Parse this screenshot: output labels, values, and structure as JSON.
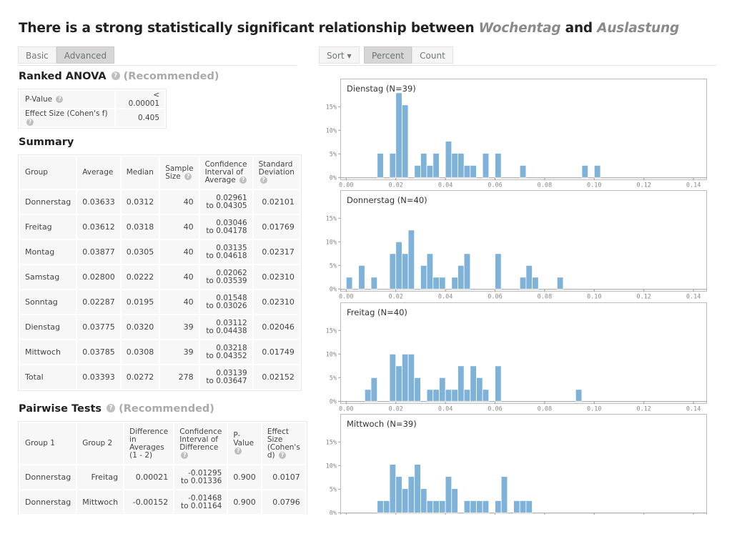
{
  "header": {
    "title_prefix": "There is a strong statistically significant relationship between",
    "var1": "Wochentag",
    "conj": "and",
    "var2": "Auslastung"
  },
  "left_tabs": [
    {
      "label": "Basic",
      "active": false
    },
    {
      "label": "Advanced",
      "active": true
    }
  ],
  "right_controls": {
    "sort_label": "Sort",
    "mode_tabs": [
      {
        "label": "Percent",
        "active": true
      },
      {
        "label": "Count",
        "active": false
      }
    ]
  },
  "anova": {
    "title": "Ranked ANOVA",
    "recommended": "(Recommended)",
    "rows": [
      {
        "label": "P-Value",
        "value": "< 0.00001"
      },
      {
        "label": "Effect Size (Cohen's f)",
        "value": "0.405"
      }
    ]
  },
  "summary": {
    "title": "Summary",
    "headers": [
      "Group",
      "Average",
      "Median",
      "Sample Size",
      "Confidence Interval of Average",
      "Standard Deviation"
    ],
    "rows": [
      {
        "group": "Donnerstag",
        "average": "0.03633",
        "median": "0.0312",
        "n": "40",
        "ci_low": "0.02961",
        "ci_high": "to 0.04305",
        "sd": "0.02101"
      },
      {
        "group": "Freitag",
        "average": "0.03612",
        "median": "0.0318",
        "n": "40",
        "ci_low": "0.03046",
        "ci_high": "to 0.04178",
        "sd": "0.01769"
      },
      {
        "group": "Montag",
        "average": "0.03877",
        "median": "0.0305",
        "n": "40",
        "ci_low": "0.03135",
        "ci_high": "to 0.04618",
        "sd": "0.02317"
      },
      {
        "group": "Samstag",
        "average": "0.02800",
        "median": "0.0222",
        "n": "40",
        "ci_low": "0.02062",
        "ci_high": "to 0.03539",
        "sd": "0.02310"
      },
      {
        "group": "Sonntag",
        "average": "0.02287",
        "median": "0.0195",
        "n": "40",
        "ci_low": "0.01548",
        "ci_high": "to 0.03026",
        "sd": "0.02310"
      },
      {
        "group": "Dienstag",
        "average": "0.03775",
        "median": "0.0320",
        "n": "39",
        "ci_low": "0.03112",
        "ci_high": "to 0.04438",
        "sd": "0.02046"
      },
      {
        "group": "Mittwoch",
        "average": "0.03785",
        "median": "0.0308",
        "n": "39",
        "ci_low": "0.03218",
        "ci_high": "to 0.04352",
        "sd": "0.01749"
      },
      {
        "group": "Total",
        "average": "0.03393",
        "median": "0.0272",
        "n": "278",
        "ci_low": "0.03139",
        "ci_high": "to 0.03647",
        "sd": "0.02152"
      }
    ]
  },
  "pairwise": {
    "title": "Pairwise Tests",
    "recommended": "(Recommended)",
    "headers": [
      "Group 1",
      "Group 2",
      "Difference in Averages (1 - 2)",
      "Confidence Interval of Difference",
      "P-Value",
      "Effect Size (Cohen's d)"
    ],
    "rows": [
      {
        "g1": "Donnerstag",
        "g2": "Freitag",
        "diff": "0.00021",
        "ci_low": "-0.01295",
        "ci_high": "to 0.01336",
        "p": "0.900",
        "d": "0.0107"
      },
      {
        "g1": "Donnerstag",
        "g2": "Mittwoch",
        "diff": "-0.00152",
        "ci_low": "-0.01468",
        "ci_high": "to 0.01164",
        "p": "0.900",
        "d": "0.0796"
      }
    ]
  },
  "chart_data": {
    "type": "bar",
    "subtype": "histogram-small-multiples",
    "bin_width": 0.0025,
    "xlim": [
      0.0,
      0.14
    ],
    "ylim_percent": [
      0,
      18
    ],
    "x_ticks": [
      "0.00",
      "0.02",
      "0.04",
      "0.06",
      "0.08",
      "0.10",
      "0.12",
      "0.14"
    ],
    "y_ticks": [
      "0%",
      "5%",
      "10%",
      "15%"
    ],
    "bar_color": "#7fb2d9",
    "panels": [
      {
        "title": "Dienstag (N=39)",
        "n": 39,
        "bins": [
          {
            "start": 0.0125,
            "count": 2
          },
          {
            "start": 0.0175,
            "count": 2
          },
          {
            "start": 0.02,
            "count": 7
          },
          {
            "start": 0.0225,
            "count": 6
          },
          {
            "start": 0.0275,
            "count": 1
          },
          {
            "start": 0.03,
            "count": 2
          },
          {
            "start": 0.0325,
            "count": 1
          },
          {
            "start": 0.035,
            "count": 2
          },
          {
            "start": 0.04,
            "count": 3
          },
          {
            "start": 0.0425,
            "count": 2
          },
          {
            "start": 0.045,
            "count": 2
          },
          {
            "start": 0.0475,
            "count": 1
          },
          {
            "start": 0.05,
            "count": 1
          },
          {
            "start": 0.055,
            "count": 2
          },
          {
            "start": 0.06,
            "count": 2
          },
          {
            "start": 0.07,
            "count": 1
          },
          {
            "start": 0.095,
            "count": 1
          },
          {
            "start": 0.1,
            "count": 1
          }
        ]
      },
      {
        "title": "Donnerstag (N=40)",
        "n": 40,
        "bins": [
          {
            "start": 0.0,
            "count": 1
          },
          {
            "start": 0.005,
            "count": 2
          },
          {
            "start": 0.01,
            "count": 1
          },
          {
            "start": 0.0175,
            "count": 3
          },
          {
            "start": 0.02,
            "count": 4
          },
          {
            "start": 0.0225,
            "count": 3
          },
          {
            "start": 0.025,
            "count": 5
          },
          {
            "start": 0.03,
            "count": 2
          },
          {
            "start": 0.0325,
            "count": 3
          },
          {
            "start": 0.035,
            "count": 1
          },
          {
            "start": 0.0375,
            "count": 1
          },
          {
            "start": 0.0425,
            "count": 1
          },
          {
            "start": 0.045,
            "count": 2
          },
          {
            "start": 0.0475,
            "count": 3
          },
          {
            "start": 0.06,
            "count": 3
          },
          {
            "start": 0.07,
            "count": 1
          },
          {
            "start": 0.0725,
            "count": 2
          },
          {
            "start": 0.075,
            "count": 1
          },
          {
            "start": 0.085,
            "count": 1
          }
        ]
      },
      {
        "title": "Freitag (N=40)",
        "n": 40,
        "bins": [
          {
            "start": 0.0075,
            "count": 1
          },
          {
            "start": 0.01,
            "count": 2
          },
          {
            "start": 0.0175,
            "count": 4
          },
          {
            "start": 0.02,
            "count": 3
          },
          {
            "start": 0.0225,
            "count": 4
          },
          {
            "start": 0.025,
            "count": 4
          },
          {
            "start": 0.0275,
            "count": 2
          },
          {
            "start": 0.0325,
            "count": 1
          },
          {
            "start": 0.035,
            "count": 1
          },
          {
            "start": 0.0375,
            "count": 2
          },
          {
            "start": 0.04,
            "count": 1
          },
          {
            "start": 0.0425,
            "count": 1
          },
          {
            "start": 0.045,
            "count": 3
          },
          {
            "start": 0.0475,
            "count": 1
          },
          {
            "start": 0.05,
            "count": 3
          },
          {
            "start": 0.0525,
            "count": 2
          },
          {
            "start": 0.055,
            "count": 1
          },
          {
            "start": 0.06,
            "count": 3
          },
          {
            "start": 0.0925,
            "count": 1
          }
        ]
      },
      {
        "title": "Mittwoch (N=39)",
        "n": 39,
        "bins": [
          {
            "start": 0.0125,
            "count": 1
          },
          {
            "start": 0.015,
            "count": 1
          },
          {
            "start": 0.0175,
            "count": 4
          },
          {
            "start": 0.02,
            "count": 3
          },
          {
            "start": 0.0225,
            "count": 2
          },
          {
            "start": 0.025,
            "count": 3
          },
          {
            "start": 0.0275,
            "count": 4
          },
          {
            "start": 0.03,
            "count": 2
          },
          {
            "start": 0.0325,
            "count": 1
          },
          {
            "start": 0.035,
            "count": 1
          },
          {
            "start": 0.0375,
            "count": 1
          },
          {
            "start": 0.04,
            "count": 3
          },
          {
            "start": 0.0425,
            "count": 2
          },
          {
            "start": 0.0475,
            "count": 1
          },
          {
            "start": 0.05,
            "count": 1
          },
          {
            "start": 0.0525,
            "count": 1
          },
          {
            "start": 0.055,
            "count": 1
          },
          {
            "start": 0.06,
            "count": 1
          },
          {
            "start": 0.0625,
            "count": 3
          },
          {
            "start": 0.0675,
            "count": 1
          },
          {
            "start": 0.07,
            "count": 1
          },
          {
            "start": 0.0725,
            "count": 1
          }
        ]
      }
    ]
  }
}
